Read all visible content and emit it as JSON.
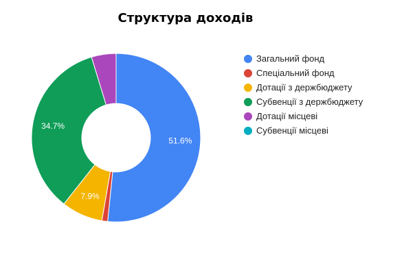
{
  "chart_data": {
    "type": "pie",
    "title": "Структура доходів",
    "categories": [
      "Загальний фонд",
      "Спеціальний фонд",
      "Дотації з держбюджету",
      "Субвенції з держбюджету",
      "Дотації місцеві",
      "Субвенції місцеві"
    ],
    "values": [
      51.6,
      1.1,
      7.9,
      34.7,
      4.7,
      0.0
    ],
    "slice_labels": [
      "51.6%",
      "",
      "7.9%",
      "34.7%",
      "",
      ""
    ],
    "colors": [
      "#4285f4",
      "#db4437",
      "#f4b400",
      "#0f9d58",
      "#ab47bc",
      "#00acc1"
    ],
    "donut": true,
    "legend_position": "right"
  }
}
